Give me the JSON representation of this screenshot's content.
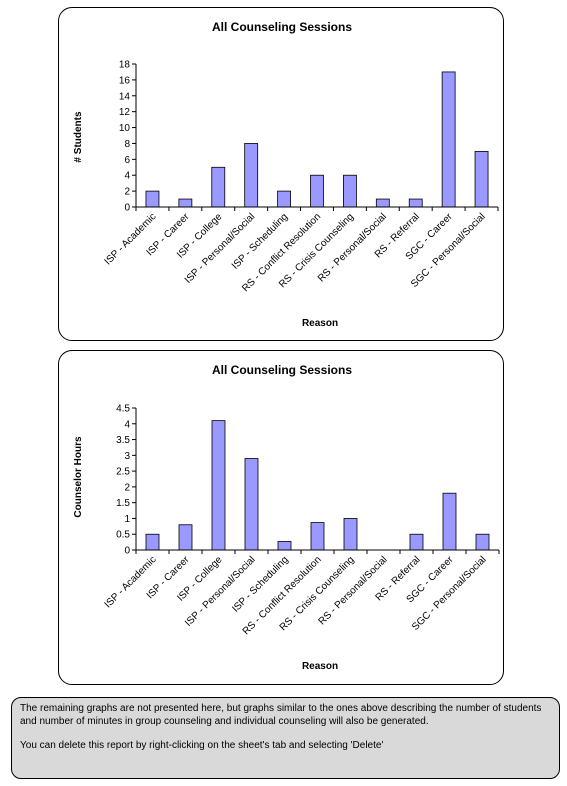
{
  "chart_data": [
    {
      "type": "bar",
      "title": "All Counseling Sessions",
      "xlabel": "Reason",
      "ylabel": "# Students",
      "ylim": [
        0,
        18
      ],
      "yticks": [
        "0",
        "2",
        "4",
        "6",
        "8",
        "10",
        "12",
        "14",
        "16",
        "18"
      ],
      "categories": [
        "ISP - Academic",
        "ISP - Career",
        "ISP - College",
        "ISP - Personal/Social",
        "ISP - Scheduling",
        "RS - Conflict Resolution",
        "RS - Crisis Counseling",
        "RS - Personal/Social",
        "RS - Referral",
        "SGC - Career",
        "SGC - Personal/Social"
      ],
      "values": [
        2,
        1,
        5,
        8,
        2,
        4,
        4,
        1,
        1,
        17,
        7
      ],
      "bar_color": "#9999ff",
      "grid": false,
      "legend": "none"
    },
    {
      "type": "bar",
      "title": "All Counseling Sessions",
      "xlabel": "Reason",
      "ylabel": "Counselor Hours",
      "ylim": [
        0,
        4.5
      ],
      "yticks": [
        "0",
        "0.5",
        "1",
        "1.5",
        "2",
        "2.5",
        "3",
        "3.5",
        "4",
        "4.5"
      ],
      "categories": [
        "ISP - Academic",
        "ISP - Career",
        "ISP - College",
        "ISP - Personal/Social",
        "ISP - Scheduling",
        "RS - Conflict Resolution",
        "RS - Crisis Counseling",
        "RS - Personal/Social",
        "RS - Referral",
        "SGC - Career",
        "SGC - Personal/Social"
      ],
      "values": [
        0.5,
        0.8,
        4.1,
        2.9,
        0.27,
        0.87,
        1.0,
        0,
        0.5,
        1.8,
        0.5
      ],
      "bar_color": "#9999ff",
      "grid": false,
      "legend": "none"
    }
  ],
  "note": {
    "line1": "The remaining graphs are not presented here, but graphs similar to the ones above describing the number of students and number of minutes in group counseling and individual counseling will also be generated.",
    "line2": "You can delete this report by right-clicking on the sheet's tab and selecting 'Delete'"
  }
}
